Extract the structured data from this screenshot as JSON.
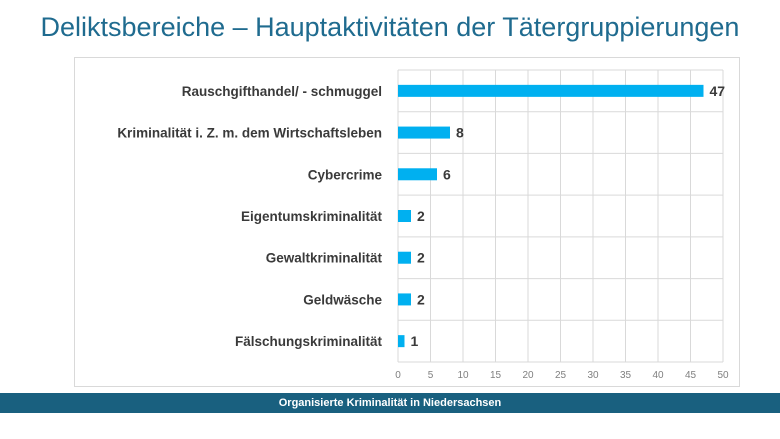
{
  "slide": {
    "title": "Deliktsbereiche – Hauptaktivitäten der Tätergruppierungen",
    "footer": "Organisierte Kriminalität in Niedersachsen"
  },
  "chart_data": {
    "type": "bar",
    "orientation": "horizontal",
    "categories": [
      "Rauschgifthandel/ - schmuggel",
      "Kriminalität i. Z. m. dem Wirtschaftsleben",
      "Cybercrime",
      "Eigentumskriminalität",
      "Gewaltkriminalität",
      "Geldwäsche",
      "Fälschungskriminalität"
    ],
    "values": [
      47,
      8,
      6,
      2,
      2,
      2,
      1
    ],
    "xlim": [
      0,
      50
    ],
    "xticks": [
      0,
      5,
      10,
      15,
      20,
      25,
      30,
      35,
      40,
      45,
      50
    ],
    "grid": true,
    "legend": "none",
    "bar_color": "#00b0f0"
  }
}
